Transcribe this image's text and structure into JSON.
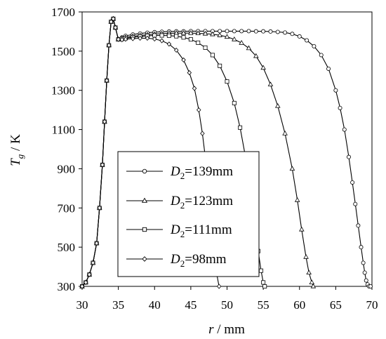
{
  "chart_data": {
    "type": "line",
    "title": "",
    "xlabel": {
      "var": "r",
      "unit": " / mm"
    },
    "ylabel": {
      "var": "T",
      "sub": "g",
      "unit": " / K"
    },
    "xlim": [
      30,
      70
    ],
    "ylim": [
      300,
      1700
    ],
    "xticks": [
      "30",
      "35",
      "40",
      "45",
      "50",
      "55",
      "60",
      "65",
      "70"
    ],
    "yticks": [
      "300",
      "500",
      "700",
      "900",
      "1100",
      "1300",
      "1500",
      "1700"
    ],
    "grid": false,
    "legend_position": "lower-left",
    "series": [
      {
        "name": {
          "prefix": "D",
          "sub": "2",
          "suffix": "=139mm"
        },
        "marker": "circle",
        "x": [
          30.0,
          30.5,
          31.0,
          31.5,
          32.0,
          32.4,
          32.8,
          33.1,
          33.4,
          33.7,
          34.0,
          34.3,
          34.6,
          35.0,
          35.5,
          36.0,
          37.0,
          38.0,
          39.0,
          40.0,
          41.0,
          42.0,
          43.0,
          44.0,
          45.0,
          46.0,
          47.0,
          48.0,
          49.0,
          50.0,
          51.0,
          52.0,
          53.0,
          54.0,
          55.0,
          56.0,
          57.0,
          58.0,
          59.0,
          60.0,
          61.0,
          62.0,
          63.0,
          64.0,
          65.0,
          65.6,
          66.2,
          66.8,
          67.3,
          67.7,
          68.1,
          68.5,
          68.8,
          69.0,
          69.2,
          69.4,
          69.6,
          69.8
        ],
        "y": [
          300,
          320,
          360,
          420,
          520,
          700,
          920,
          1140,
          1350,
          1530,
          1650,
          1665,
          1620,
          1560,
          1570,
          1578,
          1585,
          1590,
          1594,
          1597,
          1599,
          1600,
          1601,
          1601,
          1602,
          1602,
          1602,
          1602,
          1602,
          1602,
          1602,
          1602,
          1602,
          1601,
          1601,
          1600,
          1598,
          1595,
          1588,
          1575,
          1555,
          1525,
          1480,
          1410,
          1300,
          1210,
          1100,
          960,
          830,
          720,
          610,
          500,
          420,
          370,
          330,
          310,
          300,
          300
        ]
      },
      {
        "name": {
          "prefix": "D",
          "sub": "2",
          "suffix": "=123mm"
        },
        "marker": "triangle",
        "x": [
          30.0,
          30.5,
          31.0,
          31.5,
          32.0,
          32.4,
          32.8,
          33.1,
          33.4,
          33.7,
          34.0,
          34.3,
          34.6,
          35.0,
          35.5,
          36.0,
          37.0,
          38.0,
          39.0,
          40.0,
          41.0,
          42.0,
          43.0,
          44.0,
          45.0,
          46.0,
          47.0,
          48.0,
          49.0,
          50.0,
          51.0,
          52.0,
          53.0,
          54.0,
          55.0,
          56.0,
          57.0,
          58.0,
          59.0,
          59.7,
          60.3,
          60.9,
          61.3,
          61.7,
          61.9
        ],
        "y": [
          300,
          320,
          360,
          420,
          520,
          700,
          920,
          1140,
          1350,
          1530,
          1650,
          1665,
          1620,
          1560,
          1565,
          1570,
          1576,
          1580,
          1584,
          1587,
          1589,
          1591,
          1592,
          1592,
          1592,
          1591,
          1589,
          1586,
          1581,
          1573,
          1560,
          1542,
          1515,
          1475,
          1415,
          1330,
          1220,
          1080,
          900,
          740,
          590,
          450,
          370,
          320,
          300
        ]
      },
      {
        "name": {
          "prefix": "D",
          "sub": "2",
          "suffix": "=111mm"
        },
        "marker": "square",
        "x": [
          30.0,
          30.5,
          31.0,
          31.5,
          32.0,
          32.4,
          32.8,
          33.1,
          33.4,
          33.7,
          34.0,
          34.3,
          34.6,
          35.0,
          35.5,
          36.0,
          37.0,
          38.0,
          39.0,
          40.0,
          41.0,
          42.0,
          43.0,
          44.0,
          45.0,
          46.0,
          47.0,
          48.0,
          49.0,
          50.0,
          51.0,
          51.8,
          52.5,
          53.0,
          53.5,
          53.9,
          54.3,
          54.7,
          55.0,
          55.2
        ],
        "y": [
          300,
          320,
          360,
          420,
          520,
          700,
          920,
          1140,
          1350,
          1530,
          1650,
          1665,
          1620,
          1560,
          1562,
          1566,
          1571,
          1575,
          1578,
          1580,
          1580,
          1579,
          1576,
          1570,
          1560,
          1543,
          1518,
          1480,
          1425,
          1345,
          1235,
          1110,
          970,
          850,
          720,
          600,
          480,
          380,
          320,
          300
        ]
      },
      {
        "name": {
          "prefix": "D",
          "sub": "2",
          "suffix": "=98mm"
        },
        "marker": "diamond",
        "x": [
          30.0,
          30.5,
          31.0,
          31.5,
          32.0,
          32.4,
          32.8,
          33.1,
          33.4,
          33.7,
          34.0,
          34.3,
          34.6,
          35.0,
          35.5,
          36.0,
          37.0,
          38.0,
          39.0,
          40.0,
          41.0,
          42.0,
          43.0,
          44.0,
          44.8,
          45.5,
          46.1,
          46.6,
          47.0,
          47.4,
          47.8,
          48.2,
          48.6,
          48.9
        ],
        "y": [
          300,
          320,
          360,
          420,
          520,
          700,
          920,
          1140,
          1350,
          1530,
          1650,
          1665,
          1620,
          1560,
          1558,
          1561,
          1564,
          1566,
          1566,
          1562,
          1553,
          1536,
          1505,
          1455,
          1390,
          1310,
          1200,
          1080,
          960,
          820,
          660,
          500,
          360,
          300
        ]
      }
    ]
  }
}
